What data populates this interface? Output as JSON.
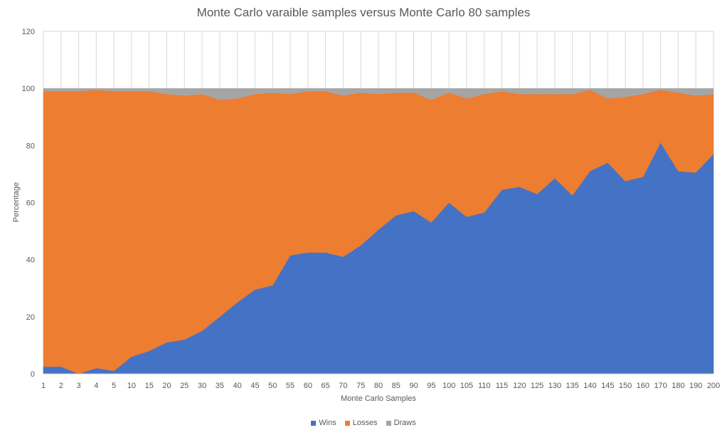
{
  "chart_data": {
    "type": "area",
    "stacked": true,
    "title": "Monte Carlo varaible samples versus Monte Carlo 80 samples",
    "xlabel": "Monte  Carlo Samples",
    "ylabel": "Percentage",
    "ylim": [
      0,
      120
    ],
    "yticks": [
      0,
      20,
      40,
      60,
      80,
      100,
      120
    ],
    "grid": "vertical",
    "legend_position": "bottom",
    "categories": [
      "1",
      "2",
      "3",
      "4",
      "5",
      "10",
      "15",
      "20",
      "25",
      "30",
      "35",
      "40",
      "45",
      "50",
      "55",
      "60",
      "65",
      "70",
      "75",
      "80",
      "85",
      "90",
      "95",
      "100",
      "105",
      "110",
      "115",
      "120",
      "125",
      "130",
      "135",
      "140",
      "145",
      "150",
      "160",
      "170",
      "180",
      "190",
      "200"
    ],
    "series": [
      {
        "name": "Wins",
        "color": "#4472C4",
        "values": [
          2.5,
          2.5,
          0,
          2,
          1,
          6,
          8,
          11,
          12,
          15,
          20,
          25,
          29.5,
          31,
          41.5,
          42.5,
          42.5,
          41,
          45,
          50.5,
          55.5,
          57,
          53,
          60,
          55,
          56.5,
          64.5,
          65.5,
          63,
          68.5,
          62.5,
          71,
          74,
          67.5,
          69,
          81,
          71,
          70.5,
          77
        ]
      },
      {
        "name": "Losses",
        "color": "#ED7D31",
        "values": [
          96.5,
          96.5,
          99,
          97.5,
          98,
          93,
          91,
          87,
          85.5,
          83,
          76,
          71.5,
          68.5,
          67.5,
          56.5,
          56.5,
          56.5,
          56.5,
          53.5,
          47.5,
          43,
          41.5,
          43,
          38.5,
          41.5,
          41.5,
          34.5,
          32.5,
          35,
          29.5,
          35.5,
          28.5,
          22.5,
          29.5,
          29,
          18.5,
          27.5,
          27,
          21
        ]
      },
      {
        "name": "Draws",
        "color": "#A5A5A5",
        "values": [
          1,
          1,
          1,
          0.5,
          1,
          1,
          1,
          2,
          2.5,
          2,
          4,
          3.5,
          2,
          1.5,
          2,
          1,
          1,
          2.5,
          1.5,
          2,
          1.5,
          1.5,
          4,
          1.5,
          3.5,
          2,
          1,
          2,
          2,
          2,
          2,
          0.5,
          3.5,
          3,
          2,
          0.5,
          1.5,
          2.5,
          2
        ]
      }
    ]
  }
}
